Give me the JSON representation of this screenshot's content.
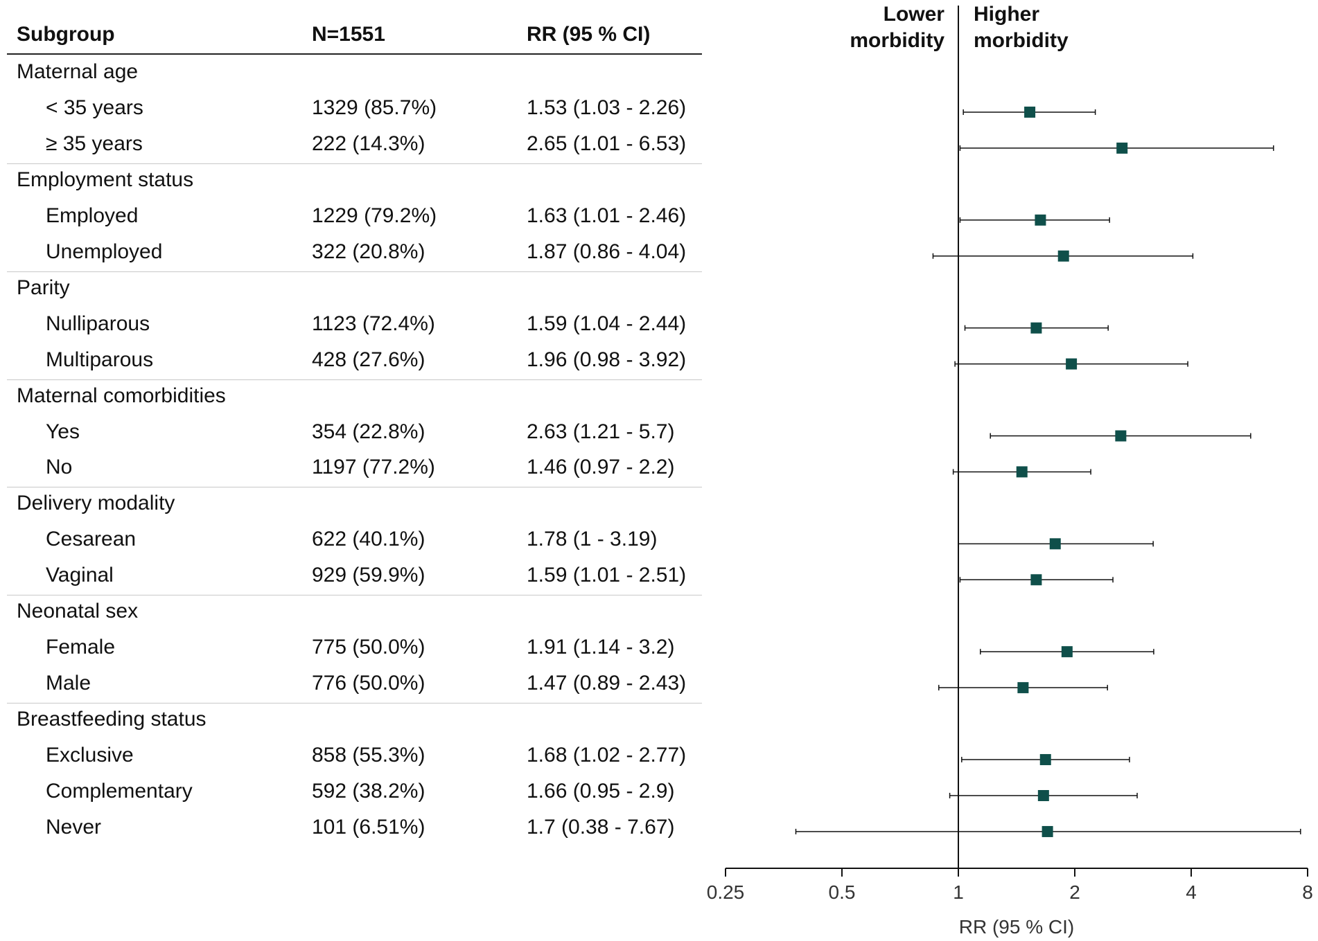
{
  "table": {
    "headers": {
      "subgroup": "Subgroup",
      "n": "N=1551",
      "rr": "RR (95 % CI)"
    },
    "groups": [
      {
        "name": "Maternal age",
        "rows": [
          {
            "label": "< 35 years",
            "n": "1329 (85.7%)",
            "rr": "1.53 (1.03 - 2.26)"
          },
          {
            "label": "≥ 35 years",
            "n": "222 (14.3%)",
            "rr": "2.65 (1.01 - 6.53)"
          }
        ]
      },
      {
        "name": "Employment status",
        "rows": [
          {
            "label": "Employed",
            "n": "1229 (79.2%)",
            "rr": "1.63 (1.01 - 2.46)"
          },
          {
            "label": "Unemployed",
            "n": "322 (20.8%)",
            "rr": "1.87 (0.86 - 4.04)"
          }
        ]
      },
      {
        "name": "Parity",
        "rows": [
          {
            "label": "Nulliparous",
            "n": "1123 (72.4%)",
            "rr": "1.59 (1.04 - 2.44)"
          },
          {
            "label": "Multiparous",
            "n": "428 (27.6%)",
            "rr": "1.96 (0.98 - 3.92)"
          }
        ]
      },
      {
        "name": "Maternal comorbidities",
        "rows": [
          {
            "label": "Yes",
            "n": "354 (22.8%)",
            "rr": "2.63 (1.21 - 5.7)"
          },
          {
            "label": "No",
            "n": "1197 (77.2%)",
            "rr": "1.46 (0.97 - 2.2)"
          }
        ]
      },
      {
        "name": "Delivery modality",
        "rows": [
          {
            "label": "Cesarean",
            "n": "622 (40.1%)",
            "rr": "1.78 (1 - 3.19)"
          },
          {
            "label": "Vaginal",
            "n": "929 (59.9%)",
            "rr": "1.59 (1.01 - 2.51)"
          }
        ]
      },
      {
        "name": "Neonatal sex",
        "rows": [
          {
            "label": "Female",
            "n": "775 (50.0%)",
            "rr": "1.91 (1.14 - 3.2)"
          },
          {
            "label": "Male",
            "n": "776 (50.0%)",
            "rr": "1.47 (0.89 - 2.43)"
          }
        ]
      },
      {
        "name": "Breastfeeding status",
        "rows": [
          {
            "label": "Exclusive",
            "n": "858 (55.3%)",
            "rr": "1.68 (1.02 - 2.77)"
          },
          {
            "label": "Complementary",
            "n": "592 (38.2%)",
            "rr": "1.66 (0.95 - 2.9)"
          },
          {
            "label": "Never",
            "n": "101 (6.51%)",
            "rr": "1.7 (0.38 - 7.67)"
          }
        ]
      }
    ]
  },
  "chart_data": {
    "type": "forest",
    "scale": "log2",
    "xlim": [
      0.25,
      8
    ],
    "reference_line": 1,
    "xlabel": "RR (95 % CI)",
    "x_ticks": [
      {
        "value": 0.25,
        "label": "0.25"
      },
      {
        "value": 0.5,
        "label": "0.5"
      },
      {
        "value": 1,
        "label": "1"
      },
      {
        "value": 2,
        "label": "2"
      },
      {
        "value": 4,
        "label": "4"
      },
      {
        "value": 8,
        "label": "8"
      }
    ],
    "left_annotation": [
      "Lower",
      "morbidity"
    ],
    "right_annotation": [
      "Higher",
      "morbidity"
    ],
    "marker_color": "#0f4f4a",
    "points": [
      {
        "label": "< 35 years",
        "rr": 1.53,
        "lo": 1.03,
        "hi": 2.26
      },
      {
        "label": "≥ 35 years",
        "rr": 2.65,
        "lo": 1.01,
        "hi": 6.53
      },
      {
        "label": "Employed",
        "rr": 1.63,
        "lo": 1.01,
        "hi": 2.46
      },
      {
        "label": "Unemployed",
        "rr": 1.87,
        "lo": 0.86,
        "hi": 4.04
      },
      {
        "label": "Nulliparous",
        "rr": 1.59,
        "lo": 1.04,
        "hi": 2.44
      },
      {
        "label": "Multiparous",
        "rr": 1.96,
        "lo": 0.98,
        "hi": 3.92
      },
      {
        "label": "Yes",
        "rr": 2.63,
        "lo": 1.21,
        "hi": 5.7
      },
      {
        "label": "No",
        "rr": 1.46,
        "lo": 0.97,
        "hi": 2.2
      },
      {
        "label": "Cesarean",
        "rr": 1.78,
        "lo": 1,
        "hi": 3.19
      },
      {
        "label": "Vaginal",
        "rr": 1.59,
        "lo": 1.01,
        "hi": 2.51
      },
      {
        "label": "Female",
        "rr": 1.91,
        "lo": 1.14,
        "hi": 3.2
      },
      {
        "label": "Male",
        "rr": 1.47,
        "lo": 0.89,
        "hi": 2.43
      },
      {
        "label": "Exclusive",
        "rr": 1.68,
        "lo": 1.02,
        "hi": 2.77
      },
      {
        "label": "Complementary",
        "rr": 1.66,
        "lo": 0.95,
        "hi": 2.9
      },
      {
        "label": "Never",
        "rr": 1.7,
        "lo": 0.38,
        "hi": 7.67
      }
    ]
  }
}
